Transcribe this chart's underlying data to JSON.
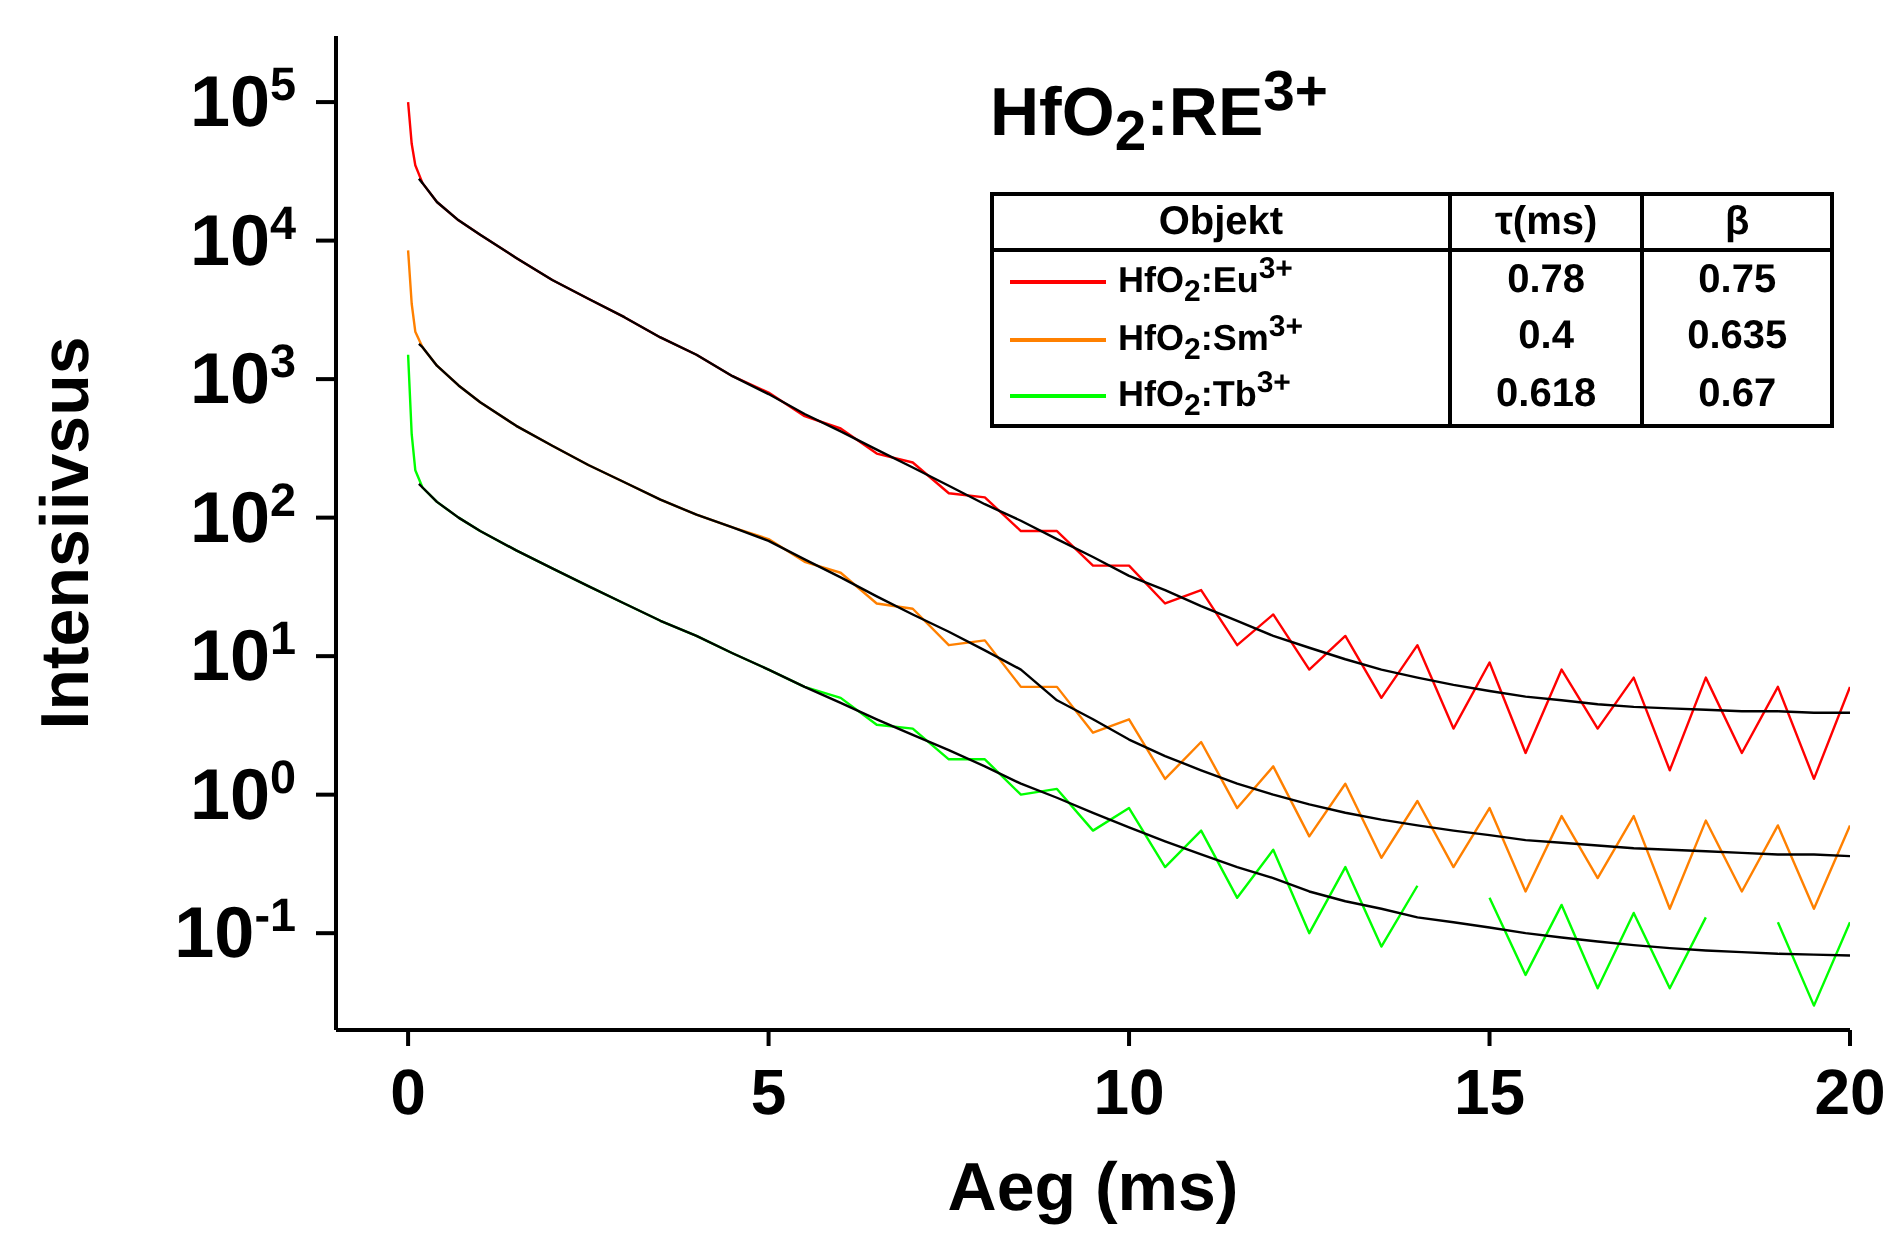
{
  "chart_data": {
    "type": "line",
    "title": "HfO$_{2}$:RE$^{3+}$",
    "xlabel": "Aeg (ms)",
    "ylabel": "Intensiivsus",
    "log": "y",
    "xlim": [
      -1,
      20
    ],
    "xticks": [
      0,
      5,
      10,
      15,
      20
    ],
    "ylim": [
      0.02,
      300000
    ],
    "yticks": [
      {
        "value": 0.1,
        "label": "10$^{-1}$"
      },
      {
        "value": 1,
        "label": "10$^{0}$"
      },
      {
        "value": 10,
        "label": "10$^{1}$"
      },
      {
        "value": 100,
        "label": "10$^{2}$"
      },
      {
        "value": 1000,
        "label": "10$^{3}$"
      },
      {
        "value": 10000,
        "label": "10$^{4}$"
      },
      {
        "value": 100000,
        "label": "10$^{5}$"
      }
    ],
    "legend": "top right",
    "marker": "none",
    "line_style": "solid",
    "x": [
      0,
      0.05,
      0.1,
      0.2,
      0.4,
      0.7,
      1,
      1.5,
      2,
      2.5,
      3,
      3.5,
      4,
      4.5,
      5,
      5.5,
      6,
      6.5,
      7,
      7.5,
      8,
      8.5,
      9,
      9.5,
      10,
      10.5,
      11,
      11.5,
      12,
      12.5,
      13,
      13.5,
      14,
      14.5,
      15,
      15.5,
      16,
      16.5,
      17,
      17.5,
      18,
      18.5,
      19,
      19.5,
      20
    ],
    "annotations": [
      "Objekt",
      "τ(ms)",
      "β",
      "0.78",
      "0.75",
      "0.4",
      "0.635",
      "0.618",
      "0.67"
    ],
    "series": [
      {
        "name": "HfO$_{2}$:Eu$^{3+}$",
        "color": "#ff0000",
        "values": [
          100000,
          50000,
          35000,
          26000,
          19000,
          14000,
          11000,
          7500,
          5200,
          3800,
          2800,
          2000,
          1500,
          1050,
          800,
          540,
          440,
          290,
          250,
          150,
          140,
          80,
          80,
          45,
          45,
          24,
          30,
          12,
          20,
          8,
          14,
          5,
          12,
          3,
          9,
          2,
          8,
          3,
          7,
          1.5,
          7,
          2,
          6,
          1.3,
          6
        ]
      },
      {
        "name": "HfO$_{2}$:Sm$^{3+}$",
        "color": "#ff8000",
        "values": [
          8500,
          3500,
          2200,
          1700,
          1250,
          900,
          680,
          460,
          330,
          240,
          180,
          135,
          105,
          85,
          70,
          48,
          40,
          24,
          22,
          12,
          13,
          6,
          6,
          2.8,
          3.5,
          1.3,
          2.4,
          0.8,
          1.6,
          0.5,
          1.2,
          0.35,
          0.9,
          0.3,
          0.8,
          0.2,
          0.7,
          0.25,
          0.7,
          0.15,
          0.65,
          0.2,
          0.6,
          0.15,
          0.6
        ]
      },
      {
        "name": "HfO$_{2}$:Tb$^{3+}$",
        "color": "#00ff00",
        "values": [
          1500,
          400,
          220,
          165,
          130,
          100,
          80,
          58,
          43,
          32,
          24,
          18,
          14,
          10.5,
          8,
          6,
          5,
          3.2,
          3,
          1.8,
          1.8,
          1,
          1.1,
          0.55,
          0.8,
          0.3,
          0.55,
          0.18,
          0.4,
          0.1,
          0.3,
          0.08,
          0.22,
          null,
          0.18,
          0.05,
          0.16,
          0.04,
          0.14,
          0.04,
          0.13,
          null,
          0.12,
          0.03,
          0.12
        ]
      },
      {
        "type": "line",
        "color": "#000000",
        "x": [
          0.15,
          0.2,
          0.4,
          0.7,
          1,
          1.5,
          2,
          2.5,
          3,
          3.5,
          4,
          4.5,
          5,
          5.5,
          6,
          6.5,
          7,
          7.5,
          8,
          8.5,
          9,
          9.5,
          10,
          10.5,
          11,
          11.5,
          12,
          12.5,
          13,
          13.5,
          14,
          14.5,
          15,
          15.5,
          16,
          16.5,
          17,
          17.5,
          18,
          18.5,
          19,
          19.5,
          20
        ],
        "values": [
          28000,
          26000,
          19000,
          14000,
          11000,
          7500,
          5200,
          3800,
          2800,
          2000,
          1500,
          1050,
          780,
          560,
          420,
          310,
          230,
          170,
          125,
          95,
          70,
          52,
          38,
          30,
          23,
          18,
          14,
          11.5,
          9.5,
          8,
          7,
          6.2,
          5.6,
          5.1,
          4.8,
          4.5,
          4.3,
          4.2,
          4.1,
          4,
          4,
          3.9,
          3.9
        ]
      },
      {
        "type": "line",
        "color": "#000000",
        "x": [
          0.15,
          0.2,
          0.4,
          0.7,
          1,
          1.5,
          2,
          2.5,
          3,
          3.5,
          4,
          4.5,
          5,
          5.5,
          6,
          6.5,
          7,
          7.5,
          8,
          8.5,
          9,
          9.5,
          10,
          10.5,
          11,
          11.5,
          12,
          12.5,
          13,
          13.5,
          14,
          14.5,
          15,
          15.5,
          16,
          16.5,
          17,
          17.5,
          18,
          18.5,
          19,
          19.5,
          20
        ],
        "values": [
          1800,
          1700,
          1250,
          900,
          680,
          460,
          330,
          240,
          180,
          135,
          105,
          85,
          68,
          50,
          37,
          27,
          20,
          15,
          11,
          8,
          4.8,
          3.5,
          2.5,
          1.9,
          1.5,
          1.2,
          1,
          0.85,
          0.74,
          0.66,
          0.6,
          0.55,
          0.51,
          0.47,
          0.45,
          0.43,
          0.41,
          0.4,
          0.39,
          0.38,
          0.37,
          0.37,
          0.36
        ]
      },
      {
        "type": "line",
        "color": "#000000",
        "x": [
          0.15,
          0.2,
          0.4,
          0.7,
          1,
          1.5,
          2,
          2.5,
          3,
          3.5,
          4,
          4.5,
          5,
          5.5,
          6,
          6.5,
          7,
          7.5,
          8,
          8.5,
          9,
          9.5,
          10,
          10.5,
          11,
          11.5,
          12,
          12.5,
          13,
          13.5,
          14,
          14.5,
          15,
          15.5,
          16,
          16.5,
          17,
          17.5,
          18,
          18.5,
          19,
          19.5,
          20
        ],
        "values": [
          175,
          165,
          130,
          100,
          80,
          58,
          43,
          32,
          24,
          18,
          14,
          10.5,
          8,
          6,
          4.6,
          3.5,
          2.7,
          2.1,
          1.6,
          1.2,
          0.95,
          0.74,
          0.58,
          0.46,
          0.37,
          0.3,
          0.25,
          0.2,
          0.17,
          0.15,
          0.13,
          0.12,
          0.11,
          0.1,
          0.093,
          0.087,
          0.082,
          0.078,
          0.075,
          0.073,
          0.071,
          0.07,
          0.069
        ]
      }
    ]
  }
}
